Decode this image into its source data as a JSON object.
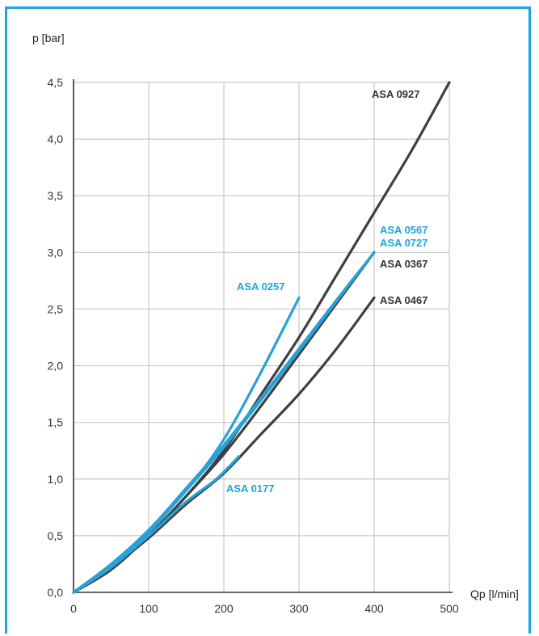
{
  "chart_data": {
    "type": "line",
    "title": "",
    "xlabel": "Qp [l/min]",
    "ylabel": "p [bar]",
    "xlim": [
      0,
      500
    ],
    "ylim": [
      0,
      4.5
    ],
    "grid": true,
    "x_ticks": [
      "0",
      "100",
      "200",
      "300",
      "400",
      "500"
    ],
    "y_ticks": [
      "0,0",
      "0,5",
      "1,0",
      "1,5",
      "2,0",
      "2,5",
      "3,0",
      "3,5",
      "4,0",
      "4,5"
    ],
    "series": [
      {
        "name": "ASA 0927",
        "color": "#3f3f41",
        "x": [
          0,
          50,
          100,
          150,
          200,
          250,
          300,
          350,
          400,
          450,
          500
        ],
        "y": [
          0,
          0.2,
          0.5,
          0.85,
          1.25,
          1.75,
          2.25,
          2.8,
          3.35,
          3.9,
          4.5
        ]
      },
      {
        "name": "ASA 0467",
        "color": "#3f3f41",
        "x": [
          0,
          50,
          100,
          150,
          200,
          250,
          300,
          350,
          400
        ],
        "y": [
          0,
          0.22,
          0.48,
          0.78,
          1.05,
          1.4,
          1.75,
          2.15,
          2.6
        ]
      },
      {
        "name": "ASA 0367",
        "color": "#3f3f41",
        "x": [
          0,
          50,
          100,
          150,
          200,
          250,
          300,
          350,
          400
        ],
        "y": [
          0,
          0.22,
          0.5,
          0.85,
          1.22,
          1.65,
          2.1,
          2.55,
          3.0
        ]
      },
      {
        "name": "ASA 0567",
        "color": "#27a2d6",
        "x": [
          0,
          50,
          100,
          150,
          200,
          250,
          300,
          350,
          400
        ],
        "y": [
          0,
          0.25,
          0.55,
          0.92,
          1.3,
          1.72,
          2.15,
          2.58,
          3.0
        ]
      },
      {
        "name": "ASA 0727",
        "color": "#27a2d6",
        "x": [
          0,
          50,
          100,
          150,
          200,
          250,
          300,
          350,
          400
        ],
        "y": [
          0,
          0.24,
          0.53,
          0.9,
          1.28,
          1.7,
          2.13,
          2.57,
          3.0
        ]
      },
      {
        "name": "ASA 0257",
        "color": "#27a2d6",
        "x": [
          0,
          50,
          100,
          150,
          200,
          250,
          300
        ],
        "y": [
          0,
          0.24,
          0.55,
          0.9,
          1.35,
          1.95,
          2.6
        ]
      },
      {
        "name": "ASA 0177",
        "color": "#27a2d6",
        "x": [
          0,
          50,
          100,
          150,
          190,
          220
        ],
        "y": [
          0,
          0.22,
          0.5,
          0.8,
          1.0,
          1.2
        ]
      }
    ],
    "labels": [
      {
        "text": "ASA 0927",
        "color": "#333333"
      },
      {
        "text": "ASA 0567",
        "color": "#1aa6dd"
      },
      {
        "text": "ASA 0727",
        "color": "#1aa6dd"
      },
      {
        "text": "ASA 0367",
        "color": "#333333"
      },
      {
        "text": "ASA 0257",
        "color": "#1aa6dd"
      },
      {
        "text": "ASA 0467",
        "color": "#333333"
      },
      {
        "text": "ASA 0177",
        "color": "#1aa6dd"
      }
    ]
  }
}
